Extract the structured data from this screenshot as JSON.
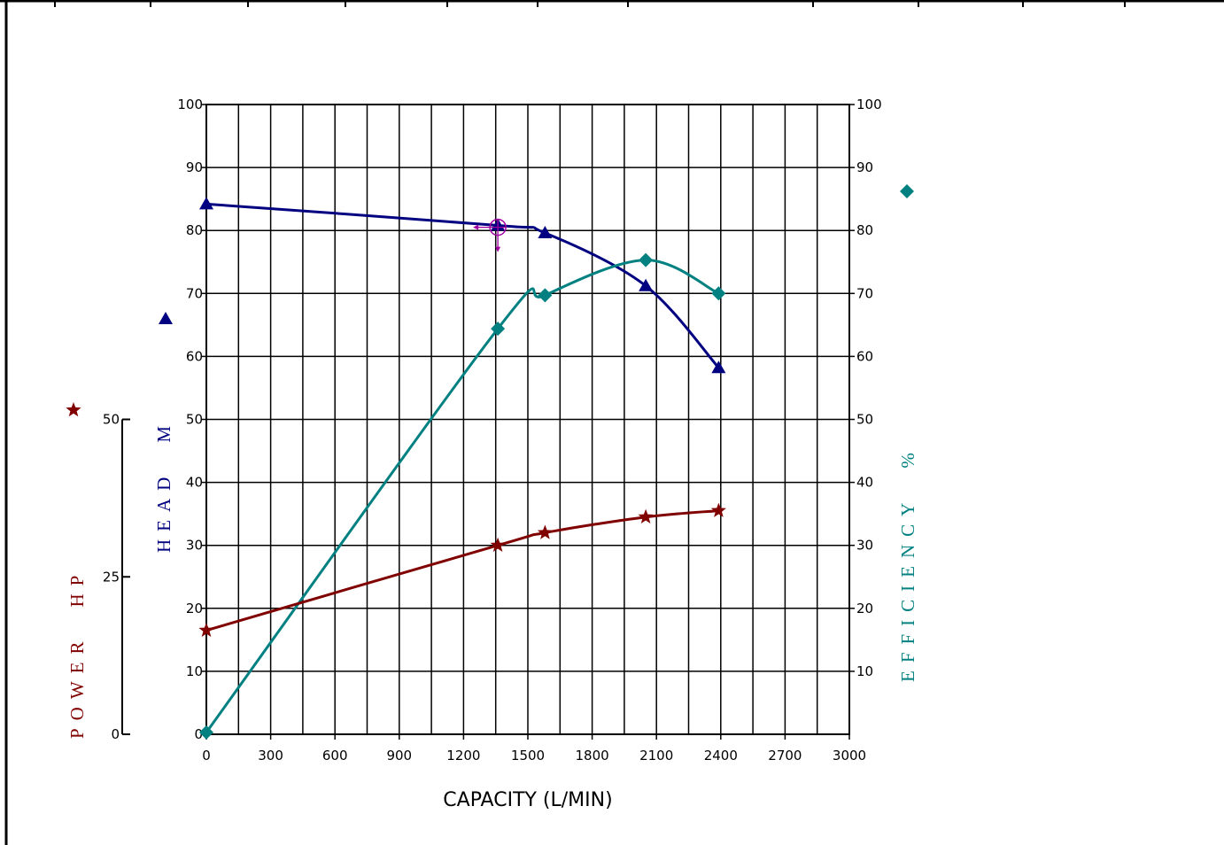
{
  "chart_data": {
    "type": "line",
    "xlabel": "CAPACITY (L/MIN)",
    "x_ticks": [
      "0",
      "300",
      "600",
      "900",
      "1200",
      "1500",
      "1800",
      "2100",
      "2400",
      "2700",
      "3000"
    ],
    "xlim": [
      0,
      3000
    ],
    "grid": true,
    "axes": {
      "head": {
        "label": "HEAD",
        "unit": "M",
        "ylim": [
          0,
          100
        ],
        "ticks": [
          "10",
          "20",
          "30",
          "40",
          "50",
          "60",
          "70",
          "80",
          "90",
          "100"
        ],
        "color": "#000080"
      },
      "efficiency": {
        "label": "EFFICIENCY",
        "unit": "%",
        "ylim": [
          0,
          100
        ],
        "ticks": [
          "10",
          "20",
          "30",
          "40",
          "50",
          "60",
          "70",
          "80",
          "90",
          "100"
        ],
        "color": "#008080"
      },
      "power": {
        "label": "POWER",
        "unit": "HP",
        "ylim": [
          0,
          100
        ],
        "ticks": [
          "0",
          "25",
          "50"
        ],
        "color": "#800000"
      }
    },
    "series": [
      {
        "name": "HEAD",
        "axis": "head",
        "color": "#000080",
        "marker": "triangle",
        "x": [
          0,
          1360,
          1580,
          2050,
          2390
        ],
        "y": [
          84.2,
          80.8,
          79.6,
          71.2,
          58.2
        ]
      },
      {
        "name": "EFFICIENCY",
        "axis": "efficiency",
        "color": "#008080",
        "marker": "diamond",
        "x": [
          0,
          1360,
          1580,
          2050,
          2390
        ],
        "y": [
          0.3,
          64.4,
          69.7,
          75.3,
          70.0
        ]
      },
      {
        "name": "POWER",
        "axis": "power",
        "color": "#800000",
        "marker": "star",
        "x": [
          0,
          1360,
          1580,
          2050,
          2390
        ],
        "y": [
          16.5,
          30.0,
          32.0,
          34.5,
          35.5
        ]
      }
    ],
    "duty_point": {
      "x": 1360,
      "y": 80.5,
      "color": "#a000a0"
    },
    "zero_label": "0"
  }
}
